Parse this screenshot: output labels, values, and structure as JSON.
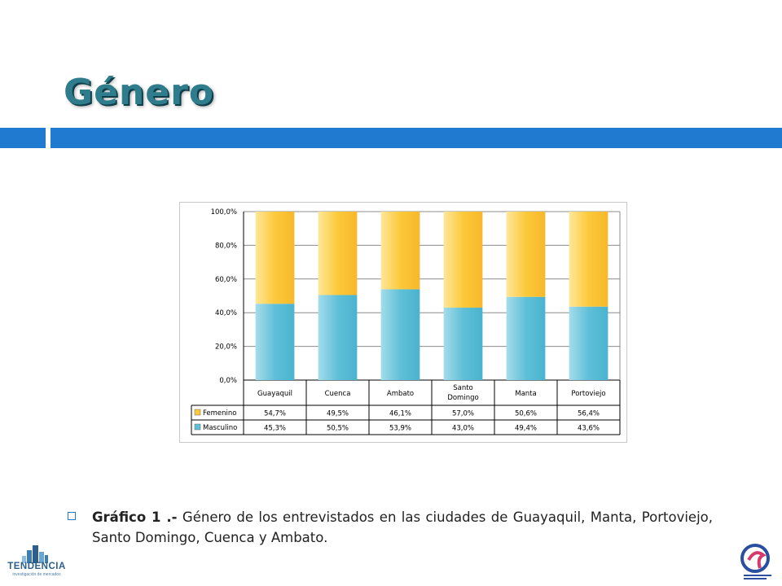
{
  "slide": {
    "title": "Género",
    "caption_bold": "Gráfico 1 .-",
    "caption_text": " Género de los entrevistados en las ciudades de Guayaquil, Manta, Portoviejo, Santo Domingo, Cuenca y Ambato."
  },
  "logos": {
    "left_name": "TENDENCIA",
    "left_tagline": "investigación de mercados"
  },
  "colors": {
    "accent": "#1f7ad0",
    "femenino": "#fbc93a",
    "masculino": "#5fc0d8"
  },
  "chart_data": {
    "type": "bar",
    "stacked": true,
    "categories": [
      "Guayaquil",
      "Cuenca",
      "Ambato",
      "Santo Domingo",
      "Manta",
      "Portoviejo"
    ],
    "series": [
      {
        "name": "Femenino",
        "values": [
          54.7,
          49.5,
          46.1,
          57.0,
          50.6,
          56.4
        ],
        "labels": [
          "54,7%",
          "49,5%",
          "46,1%",
          "57,0%",
          "50,6%",
          "56,4%"
        ]
      },
      {
        "name": "Masculino",
        "values": [
          45.3,
          50.5,
          53.9,
          43.0,
          49.4,
          43.6
        ],
        "labels": [
          "45,3%",
          "50,5%",
          "53,9%",
          "43,0%",
          "49,4%",
          "43,6%"
        ]
      }
    ],
    "ylim": [
      0,
      100
    ],
    "yticks": [
      "0,0%",
      "20,0%",
      "40,0%",
      "60,0%",
      "80,0%",
      "100,0%"
    ],
    "title": "",
    "xlabel": "",
    "ylabel": "",
    "grid": true,
    "legend": "data-table"
  }
}
